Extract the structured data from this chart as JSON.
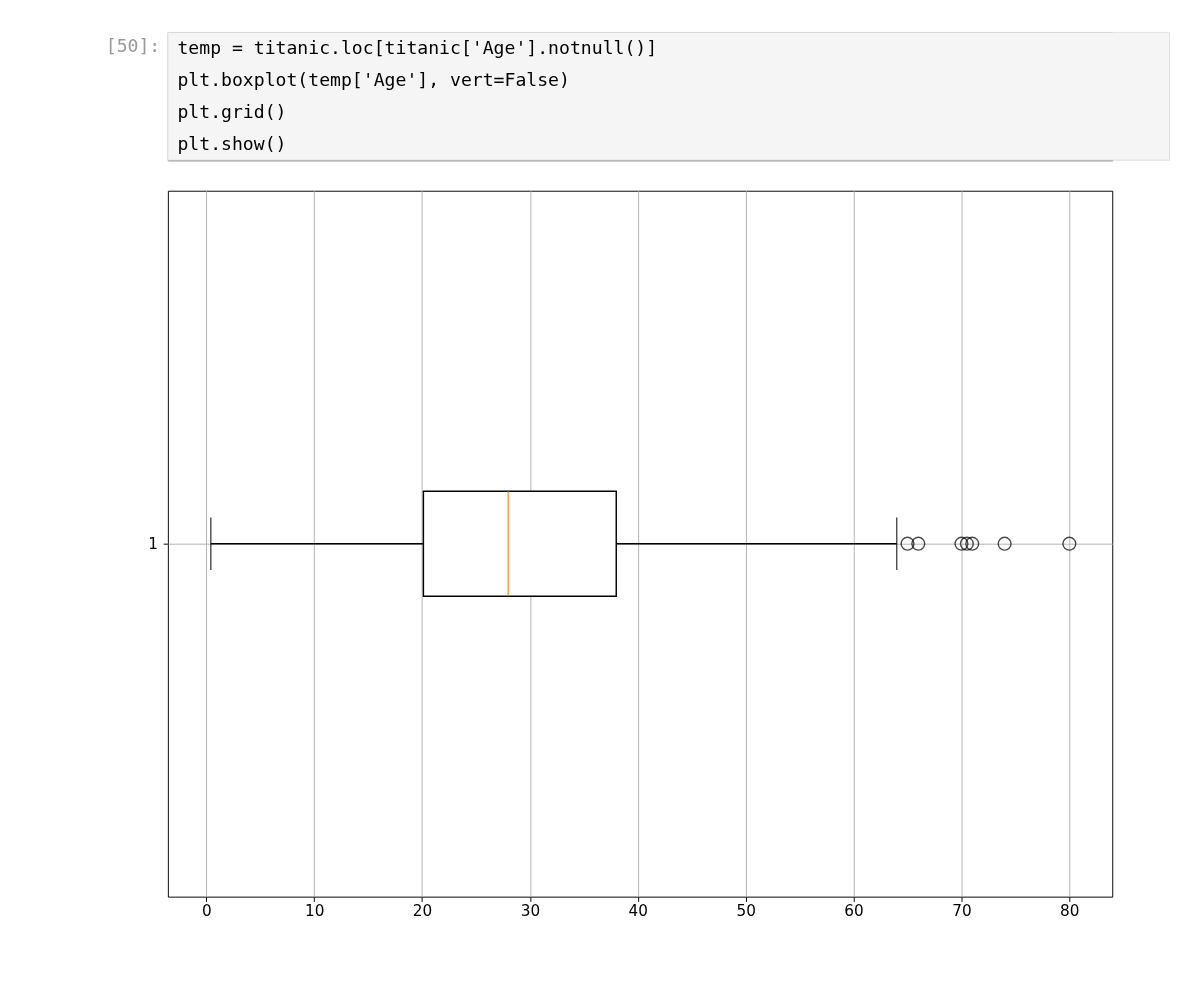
{
  "chart_data": {
    "type": "box",
    "orientation": "horizontal",
    "categories": [
      "1"
    ],
    "boxes": [
      {
        "low": 0.42,
        "q1": 20.125,
        "median": 28,
        "q3": 38,
        "high": 64,
        "outliers": [
          65,
          66,
          70,
          70.5,
          71,
          74,
          80
        ]
      }
    ],
    "xlim": [
      -3.56,
      83.98
    ],
    "xticks": [
      0,
      10,
      20,
      30,
      40,
      50,
      60,
      70,
      80
    ],
    "grid": true,
    "annotations": [
      "[50]:",
      "temp = titanic.loc[titanic['Age'].notnull()]",
      "plt.boxplot(temp['Age'], vert=False)",
      "plt.grid()",
      "plt.show()"
    ]
  }
}
